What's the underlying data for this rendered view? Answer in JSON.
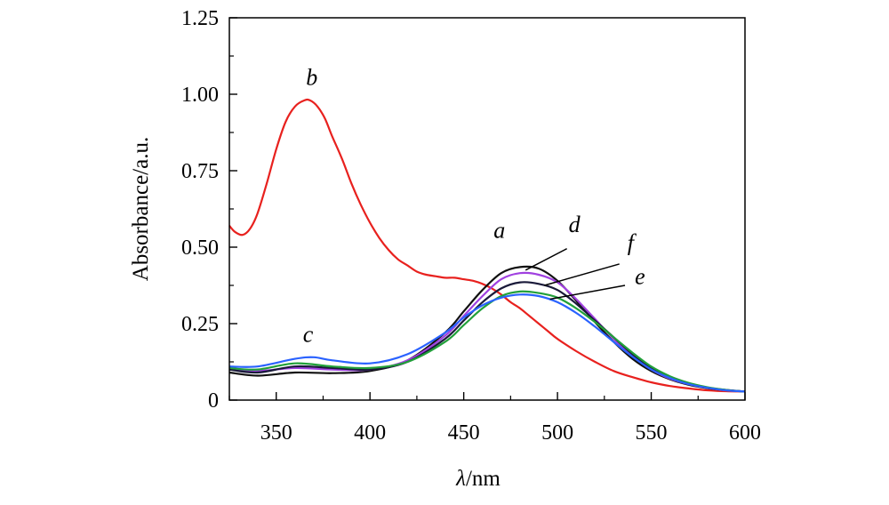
{
  "chart_data": {
    "type": "line",
    "title": "",
    "xlabel_symbol": "λ",
    "xlabel_unit": "/nm",
    "ylabel": "Absorbance/a.u.",
    "xlim": [
      325,
      600
    ],
    "ylim": [
      0,
      1.25
    ],
    "xticks": [
      350,
      400,
      450,
      500,
      550,
      600
    ],
    "yticks": [
      0,
      0.25,
      0.5,
      0.75,
      1.0,
      1.25
    ],
    "xtick_labels": [
      "350",
      "400",
      "450",
      "500",
      "550",
      "600"
    ],
    "ytick_labels": [
      "0",
      "0.25",
      "0.50",
      "0.75",
      "1.00",
      "1.25"
    ],
    "grid": false,
    "series": [
      {
        "name": "b",
        "color": "#e8211e",
        "x": [
          325,
          328,
          332,
          336,
          340,
          345,
          350,
          355,
          360,
          365,
          368,
          372,
          376,
          380,
          385,
          390,
          395,
          400,
          405,
          410,
          415,
          420,
          425,
          430,
          435,
          440,
          445,
          450,
          455,
          460,
          465,
          470,
          475,
          480,
          485,
          490,
          495,
          500,
          510,
          520,
          530,
          540,
          550,
          560,
          570,
          580,
          590,
          600
        ],
        "y": [
          0.57,
          0.55,
          0.54,
          0.56,
          0.61,
          0.71,
          0.82,
          0.91,
          0.96,
          0.98,
          0.98,
          0.96,
          0.92,
          0.86,
          0.79,
          0.71,
          0.64,
          0.58,
          0.53,
          0.49,
          0.46,
          0.44,
          0.42,
          0.41,
          0.405,
          0.4,
          0.4,
          0.395,
          0.39,
          0.38,
          0.365,
          0.345,
          0.32,
          0.3,
          0.275,
          0.25,
          0.225,
          0.2,
          0.16,
          0.125,
          0.095,
          0.075,
          0.058,
          0.046,
          0.038,
          0.032,
          0.029,
          0.028
        ]
      },
      {
        "name": "a",
        "color": "#111111",
        "x": [
          325,
          340,
          360,
          380,
          400,
          420,
          440,
          450,
          460,
          470,
          480,
          490,
          500,
          510,
          520,
          530,
          540,
          550,
          560,
          570,
          580,
          590,
          600
        ],
        "y": [
          0.09,
          0.08,
          0.09,
          0.088,
          0.095,
          0.13,
          0.22,
          0.29,
          0.36,
          0.415,
          0.435,
          0.43,
          0.39,
          0.325,
          0.255,
          0.19,
          0.135,
          0.095,
          0.068,
          0.05,
          0.039,
          0.032,
          0.028
        ]
      },
      {
        "name": "d",
        "color": "#a040e0",
        "x": [
          325,
          340,
          360,
          380,
          400,
          420,
          440,
          450,
          460,
          470,
          480,
          490,
          500,
          510,
          520,
          530,
          540,
          550,
          560,
          570,
          580,
          590,
          600
        ],
        "y": [
          0.1,
          0.095,
          0.105,
          0.1,
          0.1,
          0.13,
          0.21,
          0.275,
          0.34,
          0.395,
          0.415,
          0.41,
          0.385,
          0.33,
          0.265,
          0.2,
          0.145,
          0.1,
          0.07,
          0.052,
          0.04,
          0.032,
          0.028
        ]
      },
      {
        "name": "f",
        "color": "#1a1a3a",
        "x": [
          325,
          340,
          360,
          380,
          400,
          420,
          440,
          450,
          460,
          470,
          480,
          490,
          500,
          510,
          520,
          530,
          540,
          550,
          560,
          570,
          580,
          590,
          600
        ],
        "y": [
          0.1,
          0.09,
          0.11,
          0.105,
          0.1,
          0.125,
          0.2,
          0.26,
          0.32,
          0.365,
          0.385,
          0.38,
          0.36,
          0.315,
          0.26,
          0.205,
          0.15,
          0.105,
          0.075,
          0.054,
          0.041,
          0.033,
          0.028
        ]
      },
      {
        "name": "e",
        "color": "#22a03a",
        "x": [
          325,
          340,
          360,
          380,
          400,
          420,
          440,
          450,
          460,
          470,
          480,
          490,
          500,
          510,
          520,
          530,
          540,
          550,
          560,
          570,
          580,
          590,
          600
        ],
        "y": [
          0.105,
          0.1,
          0.12,
          0.11,
          0.105,
          0.125,
          0.19,
          0.245,
          0.3,
          0.34,
          0.355,
          0.35,
          0.335,
          0.3,
          0.255,
          0.205,
          0.155,
          0.11,
          0.078,
          0.056,
          0.042,
          0.033,
          0.028
        ]
      },
      {
        "name": "c",
        "color": "#2a62ff",
        "x": [
          325,
          340,
          360,
          370,
          380,
          400,
          420,
          440,
          450,
          460,
          470,
          480,
          490,
          500,
          510,
          520,
          530,
          540,
          550,
          560,
          570,
          580,
          590,
          600
        ],
        "y": [
          0.11,
          0.11,
          0.135,
          0.14,
          0.13,
          0.12,
          0.15,
          0.22,
          0.27,
          0.31,
          0.335,
          0.345,
          0.34,
          0.32,
          0.285,
          0.24,
          0.19,
          0.142,
          0.1,
          0.072,
          0.052,
          0.04,
          0.032,
          0.028
        ]
      }
    ],
    "annotations": [
      {
        "label": "b",
        "series": "b",
        "at_x": 369,
        "at_y": 1.03,
        "leader": false
      },
      {
        "label": "c",
        "series": "c",
        "at_x": 367,
        "at_y": 0.19,
        "leader": false
      },
      {
        "label": "a",
        "series": "a",
        "at_x": 469,
        "at_y": 0.53,
        "leader": false
      },
      {
        "label": "d",
        "series": "d",
        "at_x": 509,
        "at_y": 0.55,
        "leader": true,
        "from_x": 483,
        "from_y": 0.425,
        "to_x": 505,
        "to_y": 0.495
      },
      {
        "label": "f",
        "series": "f",
        "at_x": 539,
        "at_y": 0.49,
        "leader": true,
        "from_x": 493,
        "from_y": 0.375,
        "to_x": 533,
        "to_y": 0.445
      },
      {
        "label": "e",
        "series": "e",
        "at_x": 544,
        "at_y": 0.38,
        "leader": true,
        "from_x": 496,
        "from_y": 0.33,
        "to_x": 536,
        "to_y": 0.375
      }
    ]
  }
}
